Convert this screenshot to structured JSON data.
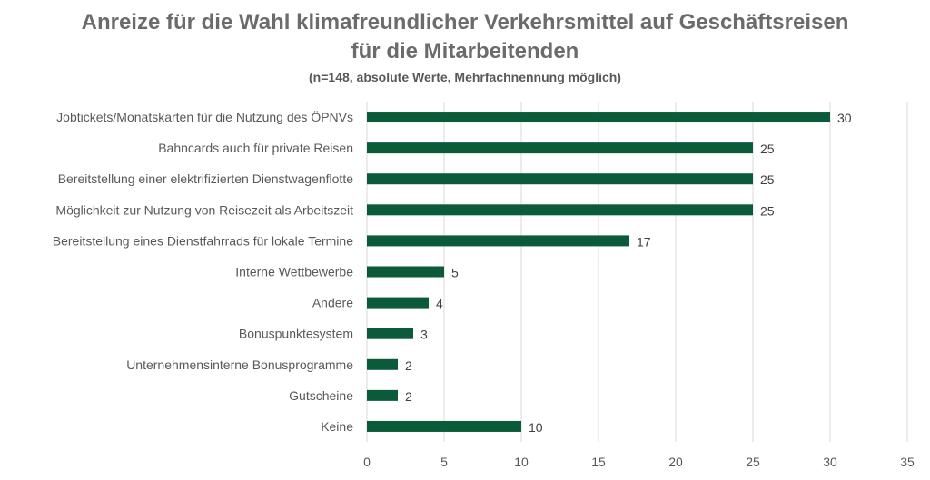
{
  "chart_data": {
    "type": "bar",
    "orientation": "horizontal",
    "title_line1": "Anreize für die Wahl klimafreundlicher Verkehrsmittel auf Geschäftsreisen",
    "title_line2": "für die Mitarbeitenden",
    "subtitle": "(n=148, absolute Werte, Mehrfachnennung möglich)",
    "categories": [
      "Jobtickets/Monatskarten für die Nutzung des ÖPNVs",
      "Bahncards auch für private Reisen",
      "Bereitstellung einer elektrifizierten Dienstwagenflotte",
      "Möglichkeit zur Nutzung von Reisezeit als Arbeitszeit",
      "Bereitstellung eines Dienstfahrrads für lokale Termine",
      "Interne Wettbewerbe",
      "Andere",
      "Bonuspunktesystem",
      "Unternehmensinterne Bonusprogramme",
      "Gutscheine",
      "Keine"
    ],
    "values": [
      30,
      25,
      25,
      25,
      17,
      5,
      4,
      3,
      2,
      2,
      10
    ],
    "xlim": [
      0,
      35
    ],
    "xticks": [
      0,
      5,
      10,
      15,
      20,
      25,
      30,
      35
    ],
    "grid": "vertical",
    "bar_color": "#0b5a3a",
    "grid_color": "#d9d9d9",
    "data_labels": true,
    "legend": "none"
  }
}
